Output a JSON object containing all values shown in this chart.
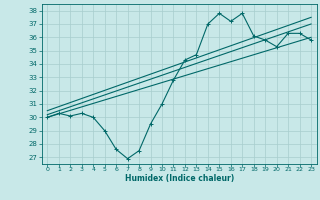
{
  "xlabel": "Humidex (Indice chaleur)",
  "ylabel": "",
  "xlim": [
    -0.5,
    23.5
  ],
  "ylim": [
    26.5,
    38.5
  ],
  "xticks": [
    0,
    1,
    2,
    3,
    4,
    5,
    6,
    7,
    8,
    9,
    10,
    11,
    12,
    13,
    14,
    15,
    16,
    17,
    18,
    19,
    20,
    21,
    22,
    23
  ],
  "yticks": [
    27,
    28,
    29,
    30,
    31,
    32,
    33,
    34,
    35,
    36,
    37,
    38
  ],
  "background_color": "#c8e8e8",
  "line_color": "#006868",
  "grid_color": "#a8cece",
  "line1_x": [
    0,
    1,
    2,
    3,
    4,
    5,
    6,
    7,
    8,
    9,
    10,
    11,
    12,
    13,
    14,
    15,
    16,
    17,
    18,
    19,
    20,
    21,
    22,
    23
  ],
  "line1_y": [
    30.0,
    30.3,
    30.1,
    30.3,
    30.0,
    29.0,
    27.6,
    26.9,
    27.5,
    29.5,
    31.0,
    32.8,
    34.3,
    34.7,
    37.0,
    37.8,
    37.2,
    37.8,
    36.1,
    35.8,
    35.3,
    36.3,
    36.3,
    35.8
  ],
  "line2_x": [
    0,
    23
  ],
  "line2_y": [
    30.0,
    36.0
  ],
  "line3_x": [
    0,
    23
  ],
  "line3_y": [
    30.2,
    37.0
  ],
  "line4_x": [
    0,
    23
  ],
  "line4_y": [
    30.5,
    37.5
  ]
}
